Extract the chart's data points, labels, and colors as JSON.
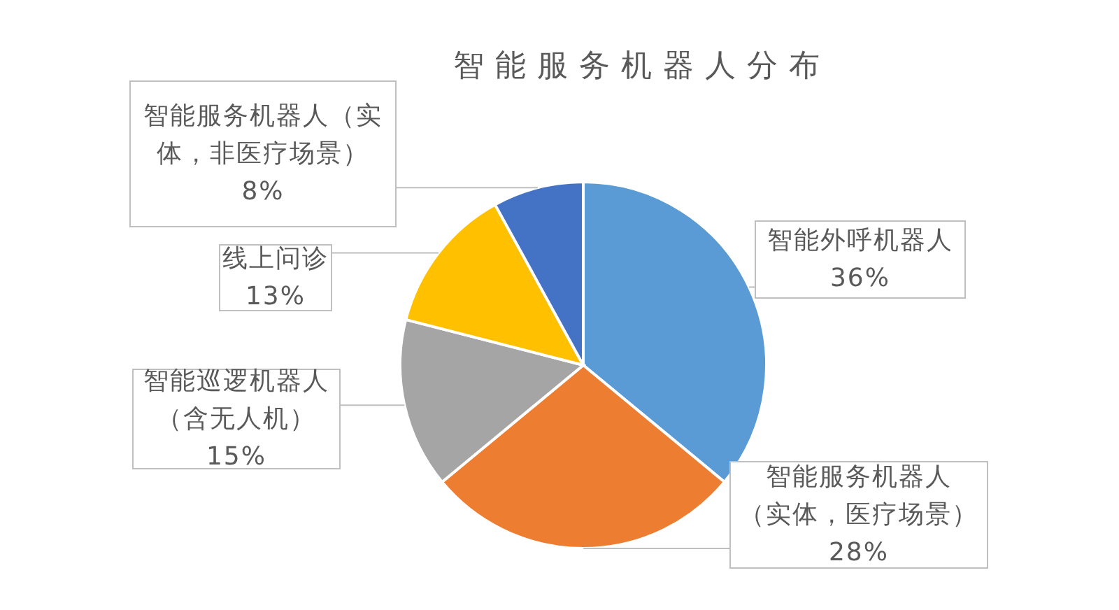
{
  "chart_data": {
    "type": "pie",
    "title": "智能服务机器人分布",
    "categories": [
      "智能外呼机器人",
      "智能服务机器人（实体，医疗场景）",
      "智能巡逻机器人（含无人机）",
      "线上问诊",
      "智能服务机器人（实体，非医疗场景）"
    ],
    "values": [
      36,
      28,
      15,
      13,
      8
    ],
    "colors": [
      "#5b9bd5",
      "#ed7d31",
      "#a5a5a5",
      "#ffc000",
      "#4472c4"
    ],
    "value_labels": [
      "36%",
      "28%",
      "15%",
      "13%",
      "8%"
    ]
  }
}
